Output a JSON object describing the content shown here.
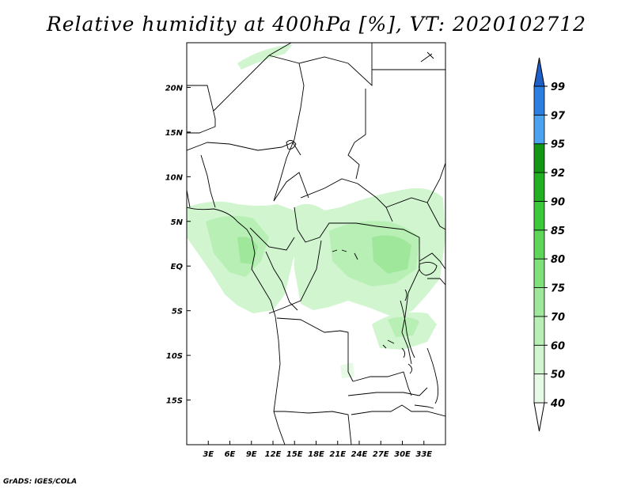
{
  "title": "Relative humidity at 400hPa [%], VT: 2020102712",
  "credit": "GrADS: IGES/COLA",
  "map": {
    "lon_range": [
      0,
      36
    ],
    "lat_range": [
      -20,
      25
    ],
    "lat_ticks": [
      {
        "value": 20,
        "label": "20N"
      },
      {
        "value": 15,
        "label": "15N"
      },
      {
        "value": 10,
        "label": "10N"
      },
      {
        "value": 5,
        "label": "5N"
      },
      {
        "value": 0,
        "label": "EQ"
      },
      {
        "value": -5,
        "label": "5S"
      },
      {
        "value": -10,
        "label": "10S"
      },
      {
        "value": -15,
        "label": "15S"
      }
    ],
    "lon_ticks": [
      {
        "value": 3,
        "label": "3E"
      },
      {
        "value": 6,
        "label": "6E"
      },
      {
        "value": 9,
        "label": "9E"
      },
      {
        "value": 12,
        "label": "12E"
      },
      {
        "value": 15,
        "label": "15E"
      },
      {
        "value": 18,
        "label": "18E"
      },
      {
        "value": 21,
        "label": "21E"
      },
      {
        "value": 24,
        "label": "24E"
      },
      {
        "value": 27,
        "label": "27E"
      },
      {
        "value": 30,
        "label": "30E"
      },
      {
        "value": 33,
        "label": "33E"
      }
    ]
  },
  "colorbar": {
    "levels": [
      "40",
      "50",
      "60",
      "70",
      "75",
      "80",
      "85",
      "90",
      "92",
      "95",
      "97",
      "99"
    ],
    "colors": [
      "#ffffff",
      "#e6fae6",
      "#d0f5cf",
      "#b7efb4",
      "#9fe89b",
      "#80e07c",
      "#5fd65a",
      "#3dc83a",
      "#22b022",
      "#139613",
      "#4da3f0",
      "#2c7fe0",
      "#1e5fc8"
    ]
  }
}
